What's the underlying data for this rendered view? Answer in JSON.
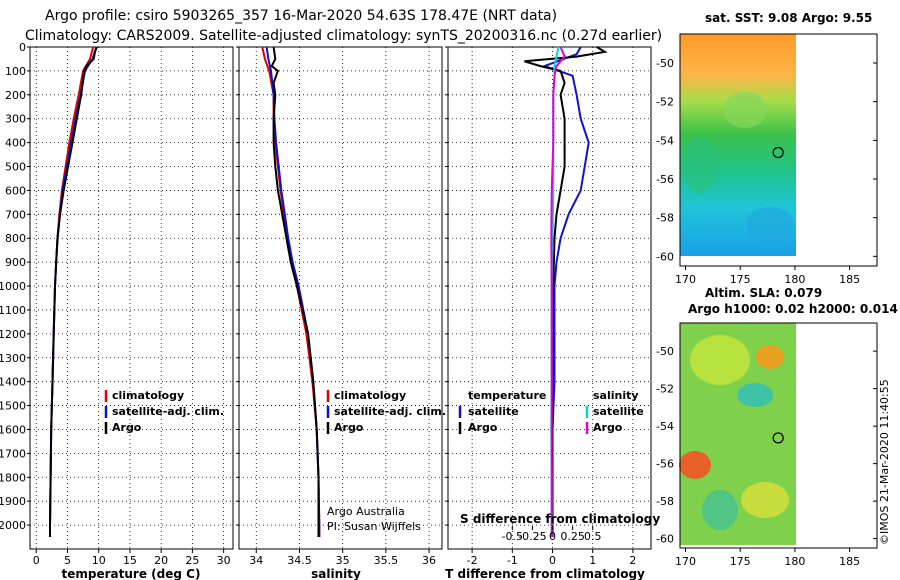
{
  "header": {
    "title_line1": "Argo profile: csiro 5903265_357 16-Mar-2020 54.63S 178.47E (NRT data)",
    "title_line2": "Climatology: CARS2009. Satellite-adjusted climatology: synTS_20200316.nc (0.27d earlier)"
  },
  "colors": {
    "climatology": "#e00000",
    "satellite": "#1010d0",
    "argo": "#000000",
    "sat_salinity": "#00d8d8",
    "argo_salinity": "#e000e0"
  },
  "chart_data": [
    {
      "type": "line",
      "id": "temperature",
      "xlabel": "temperature (deg C)",
      "ylabel": "",
      "xlim": [
        -1,
        31.5
      ],
      "ylim": [
        2100,
        0
      ],
      "xticks": [
        "0",
        "5",
        "10",
        "15",
        "20",
        "25",
        "30"
      ],
      "xtick_values": [
        0,
        5,
        10,
        15,
        20,
        25,
        30
      ],
      "yticks": [
        "0",
        "100",
        "200",
        "300",
        "400",
        "500",
        "600",
        "700",
        "800",
        "900",
        "1000",
        "1100",
        "1200",
        "1300",
        "1400",
        "1500",
        "1600",
        "1700",
        "1800",
        "1900",
        "2000"
      ],
      "ytick_values": [
        0,
        100,
        200,
        300,
        400,
        500,
        600,
        700,
        800,
        900,
        1000,
        1100,
        1200,
        1300,
        1400,
        1500,
        1600,
        1700,
        1800,
        1900,
        2000
      ],
      "legend": [
        "climatology",
        "satellite-adj. clim.",
        "Argo"
      ],
      "series": [
        {
          "name": "climatology",
          "depth": [
            0,
            50,
            100,
            200,
            300,
            400,
            500,
            600,
            700,
            800,
            900,
            1000,
            1200,
            1400,
            1600,
            1800,
            2000,
            2050
          ],
          "values": [
            9.1,
            8.6,
            7.5,
            6.8,
            6.0,
            5.3,
            4.7,
            4.1,
            3.7,
            3.4,
            3.2,
            3.0,
            2.8,
            2.6,
            2.4,
            2.3,
            2.2,
            2.2
          ]
        },
        {
          "name": "satellite-adj. clim.",
          "depth": [
            0,
            50,
            100,
            200,
            300,
            400,
            500,
            600,
            700,
            800,
            900,
            1000,
            1200,
            1400,
            1600,
            1800,
            2000,
            2050
          ],
          "values": [
            9.6,
            9.0,
            7.8,
            7.1,
            6.3,
            5.6,
            4.9,
            4.2,
            3.8,
            3.4,
            3.2,
            3.0,
            2.8,
            2.6,
            2.4,
            2.3,
            2.2,
            2.2
          ]
        },
        {
          "name": "Argo",
          "depth": [
            0,
            20,
            50,
            80,
            100,
            200,
            300,
            400,
            500,
            600,
            700,
            800,
            900,
            1000,
            1200,
            1400,
            1600,
            1800,
            2000,
            2050
          ],
          "values": [
            9.7,
            9.4,
            9.2,
            8.0,
            7.7,
            7.2,
            6.5,
            5.8,
            5.1,
            4.4,
            3.8,
            3.4,
            3.2,
            3.0,
            2.8,
            2.6,
            2.4,
            2.3,
            2.2,
            2.2
          ]
        }
      ]
    },
    {
      "type": "line",
      "id": "salinity",
      "xlabel": "salinity",
      "xlim": [
        33.8,
        36.15
      ],
      "ylim": [
        2100,
        0
      ],
      "xticks": [
        "34",
        "34.5",
        "35",
        "35.5",
        "36"
      ],
      "xtick_values": [
        34,
        34.5,
        35,
        35.5,
        36
      ],
      "legend": [
        "climatology",
        "satellite-adj. clim.",
        "Argo"
      ],
      "annotations": [
        "Argo Australia",
        "PI: Susan Wijffels"
      ],
      "series": [
        {
          "name": "climatology",
          "depth": [
            0,
            50,
            100,
            200,
            300,
            400,
            500,
            600,
            700,
            800,
            900,
            1000,
            1200,
            1400,
            1600,
            1800,
            2000,
            2050
          ],
          "values": [
            34.07,
            34.1,
            34.15,
            34.2,
            34.2,
            34.22,
            34.25,
            34.28,
            34.32,
            34.35,
            34.4,
            34.47,
            34.58,
            34.65,
            34.7,
            34.72,
            34.73,
            34.73
          ]
        },
        {
          "name": "satellite-adj. clim.",
          "depth": [
            0,
            50,
            100,
            200,
            300,
            400,
            500,
            600,
            700,
            800,
            900,
            1000,
            1200,
            1400,
            1600,
            1800,
            2000,
            2050
          ],
          "values": [
            34.12,
            34.14,
            34.17,
            34.2,
            34.21,
            34.23,
            34.26,
            34.29,
            34.33,
            34.37,
            34.42,
            34.49,
            34.6,
            34.66,
            34.7,
            34.72,
            34.73,
            34.73
          ]
        },
        {
          "name": "Argo",
          "depth": [
            0,
            50,
            80,
            100,
            150,
            200,
            300,
            400,
            500,
            600,
            700,
            800,
            900,
            1000,
            1200,
            1400,
            1600,
            1800,
            2000,
            2050
          ],
          "values": [
            34.2,
            34.22,
            34.18,
            34.25,
            34.2,
            34.22,
            34.2,
            34.2,
            34.22,
            34.25,
            34.3,
            34.35,
            34.4,
            34.47,
            34.6,
            34.66,
            34.7,
            34.72,
            34.72,
            34.72
          ]
        }
      ]
    },
    {
      "type": "line",
      "id": "difference",
      "xlabel": "T difference from climatology",
      "xlim": [
        -2.6,
        2.45
      ],
      "ylim": [
        2100,
        0
      ],
      "xticks": [
        "-2",
        "-1",
        "0",
        "1",
        "2"
      ],
      "xtick_values": [
        -2,
        -1,
        0,
        1,
        2
      ],
      "xticks_salinity": [
        "-0.5",
        "-0.25",
        "0",
        "0.25",
        "0.5"
      ],
      "xtick_salinity_values": [
        -0.5,
        -0.25,
        0,
        0.25,
        0.5
      ],
      "salinity_axis_label": "S difference from climatology",
      "legend_temperature_title": "temperature",
      "legend_salinity_title": "salinity",
      "legend_temperature": [
        "satellite",
        "Argo"
      ],
      "legend_salinity": [
        "satellite",
        "Argo"
      ],
      "series": [
        {
          "name": "temperature satellite",
          "depth": [
            0,
            30,
            80,
            120,
            200,
            300,
            400,
            500,
            600,
            700,
            800,
            900,
            1000,
            1200,
            1400,
            1600,
            1800,
            2000,
            2050
          ],
          "values": [
            0.7,
            0.6,
            -0.2,
            0.5,
            0.6,
            0.7,
            0.9,
            0.8,
            0.7,
            0.4,
            0.2,
            0.1,
            0.05,
            0.05,
            0.05,
            0.0,
            0.0,
            0.0,
            0.0
          ]
        },
        {
          "name": "temperature Argo",
          "depth": [
            0,
            20,
            40,
            60,
            80,
            100,
            150,
            200,
            300,
            400,
            500,
            600,
            700,
            800,
            1000,
            1200,
            1400,
            1600,
            1800,
            2000,
            2050
          ],
          "values": [
            1.1,
            1.3,
            0.6,
            -0.7,
            -0.3,
            0.2,
            0.3,
            0.2,
            0.3,
            0.3,
            0.3,
            0.2,
            0.1,
            0.05,
            0.02,
            0.0,
            0.0,
            0.0,
            0.0,
            0.0,
            0.0
          ]
        },
        {
          "name": "salinity satellite",
          "depth": [
            0,
            40,
            80,
            120,
            200,
            400,
            600,
            800,
            1000,
            1200,
            1400,
            1600,
            1800,
            2000,
            2050
          ],
          "values": [
            0.15,
            0.1,
            0.05,
            0.05,
            0.02,
            0.02,
            0.02,
            0.0,
            -0.02,
            -0.02,
            -0.02,
            -0.03,
            -0.02,
            -0.02,
            -0.02
          ]
        },
        {
          "name": "salinity Argo",
          "depth": [
            0,
            40,
            80,
            120,
            200,
            400,
            600,
            800,
            1000,
            1200,
            1400,
            1600,
            1800,
            2000,
            2050
          ],
          "values": [
            0.2,
            0.3,
            0.1,
            0.05,
            0.02,
            0.02,
            -0.02,
            -0.03,
            -0.02,
            -0.02,
            -0.02,
            -0.02,
            -0.02,
            -0.02,
            -0.02
          ]
        }
      ]
    },
    {
      "type": "heatmap",
      "id": "sst_map",
      "title": "sat. SST: 9.08 Argo: 9.55",
      "xlim": [
        169.5,
        187.5
      ],
      "ylim": [
        -60.5,
        -48.5
      ],
      "xticks": [
        "170",
        "175",
        "180",
        "185"
      ],
      "xtick_values": [
        170,
        175,
        180,
        185
      ],
      "yticks": [
        "-50",
        "-52",
        "-54",
        "-56",
        "-58",
        "-60"
      ],
      "ytick_values": [
        -50,
        -52,
        -54,
        -56,
        -58,
        -60
      ],
      "profile_lon": 178.47,
      "profile_lat": -54.63
    },
    {
      "type": "heatmap",
      "id": "sla_map",
      "title": "Altim. SLA: 0.079",
      "subtitle": "Argo h1000: 0.02 h2000: 0.014",
      "xlim": [
        169.5,
        187.5
      ],
      "ylim": [
        -60.5,
        -48.5
      ],
      "xticks": [
        "170",
        "175",
        "180",
        "185"
      ],
      "xtick_values": [
        170,
        175,
        180,
        185
      ],
      "yticks": [
        "-50",
        "-52",
        "-54",
        "-56",
        "-58",
        "-60"
      ],
      "ytick_values": [
        -50,
        -52,
        -54,
        -56,
        -58,
        -60
      ],
      "profile_lon": 178.47,
      "profile_lat": -54.63
    }
  ],
  "footer": {
    "credit": "©IMOS 21-Mar-2020 11:40:55"
  }
}
